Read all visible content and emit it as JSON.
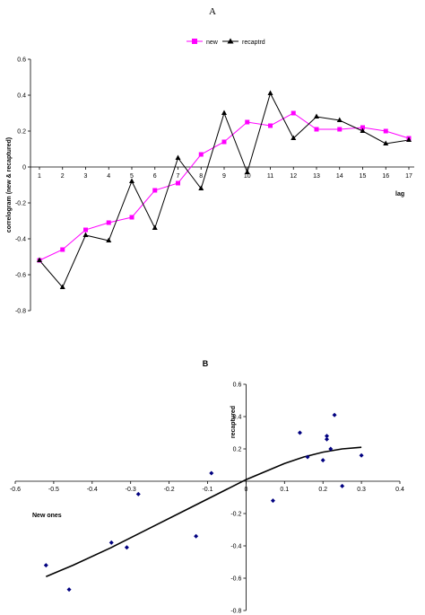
{
  "chart_data": [
    {
      "type": "line",
      "panel_label": "A",
      "ylabel": "correlogram (new & recaptured)",
      "xlabel": "lag",
      "ylim": [
        -0.8,
        0.6
      ],
      "yticks": [
        -0.8,
        -0.6,
        -0.4,
        -0.2,
        0,
        0.2,
        0.4,
        0.6
      ],
      "x": [
        1,
        2,
        3,
        4,
        5,
        6,
        7,
        8,
        9,
        10,
        11,
        12,
        13,
        14,
        15,
        16,
        17
      ],
      "legend_position": "top-center",
      "series": [
        {
          "name": "new",
          "color": "#ff00ff",
          "marker": "square",
          "values": [
            -0.52,
            -0.46,
            -0.35,
            -0.31,
            -0.28,
            -0.13,
            -0.09,
            0.07,
            0.14,
            0.25,
            0.23,
            0.3,
            0.21,
            0.21,
            0.22,
            0.2,
            0.16
          ]
        },
        {
          "name": "recaptrd",
          "color": "#000000",
          "marker": "triangle",
          "values": [
            -0.52,
            -0.67,
            -0.38,
            -0.41,
            -0.08,
            -0.34,
            0.05,
            -0.12,
            0.3,
            -0.03,
            0.41,
            0.16,
            0.28,
            0.26,
            0.2,
            0.13,
            0.15
          ]
        }
      ]
    },
    {
      "type": "scatter",
      "panel_label": "B",
      "xlabel": "New ones",
      "ylabel": "recaptured",
      "xlim": [
        -0.6,
        0.4
      ],
      "ylim": [
        -0.8,
        0.6
      ],
      "xticks": [
        -0.6,
        -0.5,
        -0.4,
        -0.3,
        -0.2,
        -0.1,
        0,
        0.1,
        0.2,
        0.3,
        0.4
      ],
      "yticks": [
        -0.8,
        -0.6,
        -0.4,
        -0.2,
        0.2,
        0.4,
        0.6
      ],
      "point_color": "#000080",
      "points": [
        [
          -0.52,
          -0.52
        ],
        [
          -0.46,
          -0.67
        ],
        [
          -0.35,
          -0.38
        ],
        [
          -0.31,
          -0.41
        ],
        [
          -0.28,
          -0.08
        ],
        [
          -0.13,
          -0.34
        ],
        [
          -0.09,
          0.05
        ],
        [
          0.07,
          -0.12
        ],
        [
          0.14,
          0.3
        ],
        [
          0.25,
          -0.03
        ],
        [
          0.23,
          0.41
        ],
        [
          0.3,
          0.16
        ],
        [
          0.21,
          0.28
        ],
        [
          0.21,
          0.26
        ],
        [
          0.22,
          0.2
        ],
        [
          0.2,
          0.13
        ],
        [
          0.16,
          0.15
        ]
      ],
      "trend_line": {
        "color": "#000000",
        "x": [
          -0.52,
          -0.45,
          -0.35,
          -0.25,
          -0.15,
          -0.05,
          0.0,
          0.05,
          0.1,
          0.15,
          0.2,
          0.25,
          0.3
        ],
        "y": [
          -0.59,
          -0.52,
          -0.41,
          -0.29,
          -0.17,
          -0.05,
          0.01,
          0.06,
          0.11,
          0.15,
          0.18,
          0.2,
          0.21
        ]
      }
    }
  ]
}
